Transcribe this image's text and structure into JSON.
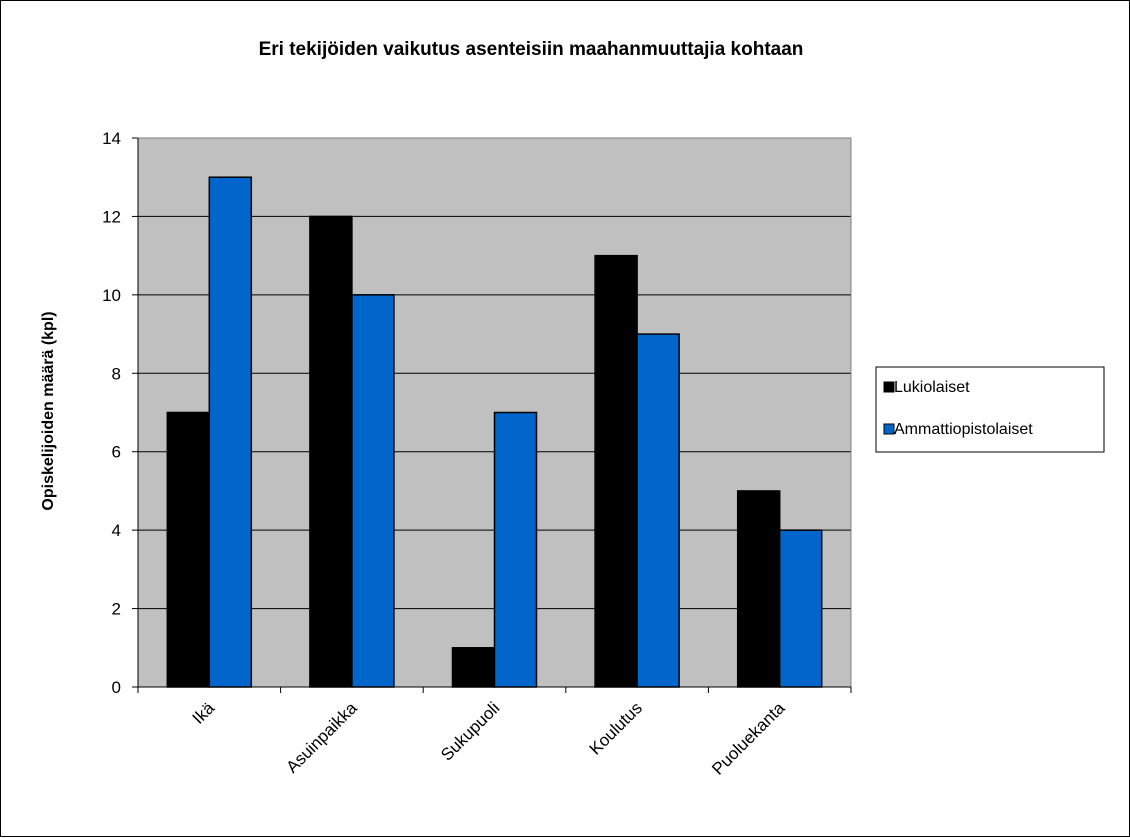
{
  "chart_data": {
    "type": "bar",
    "title": "Eri tekijöiden vaikutus asenteisiin maahanmuuttajia kohtaan",
    "xlabel": "",
    "ylabel": "Opiskelijoiden  määrä (kpl)",
    "categories": [
      "Ikä",
      "Asuinpaikka",
      "Sukupuoli",
      "Koulutus",
      "Puoluekanta"
    ],
    "series": [
      {
        "name": "Lukiolaiset",
        "values": [
          7,
          12,
          1,
          11,
          5
        ],
        "color": "#000000"
      },
      {
        "name": "Ammattiopistolaiset",
        "values": [
          13,
          10,
          7,
          9,
          4
        ],
        "color": "#0066cc"
      }
    ],
    "ylim": [
      0,
      14
    ],
    "yticks": [
      0,
      2,
      4,
      6,
      8,
      10,
      12,
      14
    ],
    "grid": true,
    "plot_background": "#c0c0c0",
    "legend_position": "right"
  }
}
